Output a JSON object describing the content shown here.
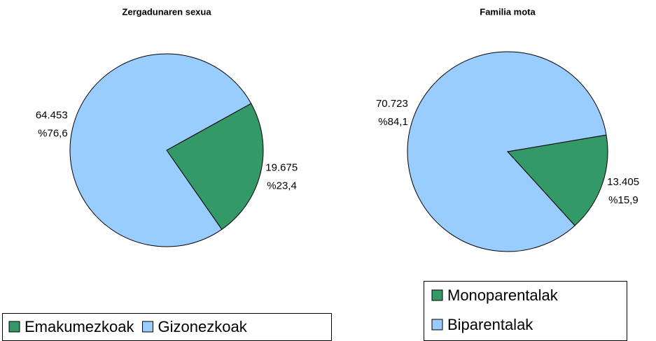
{
  "chart_data": [
    {
      "type": "pie",
      "title": "Zergadunaren sexua",
      "categories": [
        "Emakumezkoak",
        "Gizonezkoak"
      ],
      "values": [
        19675,
        64453
      ],
      "value_labels": [
        "19.675",
        "64.453"
      ],
      "percent_labels": [
        "%23,4",
        "%76,6"
      ],
      "colors": [
        "#339966",
        "#99ccff"
      ],
      "legend": "bottom"
    },
    {
      "type": "pie",
      "title": "Familia mota",
      "categories": [
        "Monoparentalak",
        "Biparentalak"
      ],
      "values": [
        13405,
        70723
      ],
      "value_labels": [
        "13.405",
        "70.723"
      ],
      "percent_labels": [
        "%15,9",
        "%84,1"
      ],
      "colors": [
        "#339966",
        "#99ccff"
      ],
      "legend": "right"
    }
  ]
}
